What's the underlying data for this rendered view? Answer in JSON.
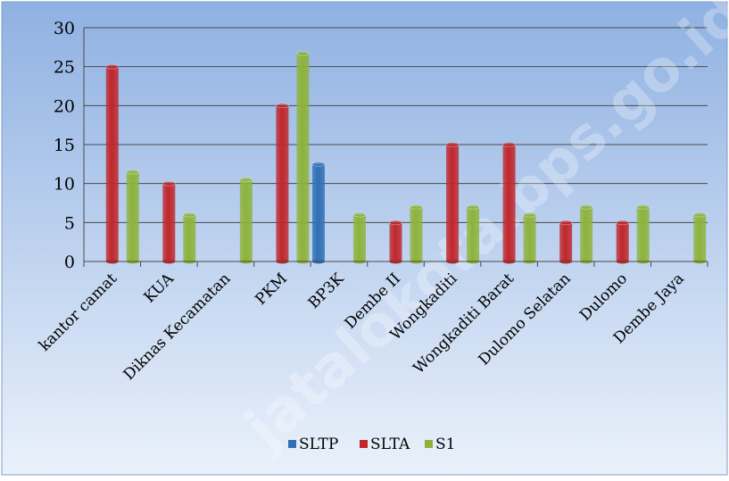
{
  "watermark": "jatalokota.bps.go.id",
  "chart_data": {
    "type": "bar",
    "title": "",
    "xlabel": "",
    "ylabel": "",
    "ylim": [
      0,
      30
    ],
    "yticks": [
      0,
      5,
      10,
      15,
      20,
      25,
      30
    ],
    "grid": "horizontal",
    "legend_position": "bottom",
    "categories": [
      "kantor camat",
      "KUA",
      "Diknas Kecamatan",
      "PKM",
      "BP3K",
      "Dembe II",
      "Wongkaditi",
      "Wongkaditi Barat",
      "Dulomo Selatan",
      "Dulomo",
      "Dembe Jaya"
    ],
    "series": [
      {
        "name": "SLTP",
        "color": "#2f6fb4",
        "values": [
          0,
          0,
          0,
          0,
          12.5,
          0,
          0,
          0,
          0,
          0,
          0
        ]
      },
      {
        "name": "SLTA",
        "color": "#c0262b",
        "values": [
          25,
          10,
          0,
          20,
          0,
          5,
          15,
          15,
          5,
          5,
          0
        ]
      },
      {
        "name": "S1",
        "color": "#8db33a",
        "values": [
          11.5,
          6,
          10.5,
          26.7,
          6,
          7,
          7,
          6,
          7,
          7,
          6
        ]
      }
    ]
  }
}
